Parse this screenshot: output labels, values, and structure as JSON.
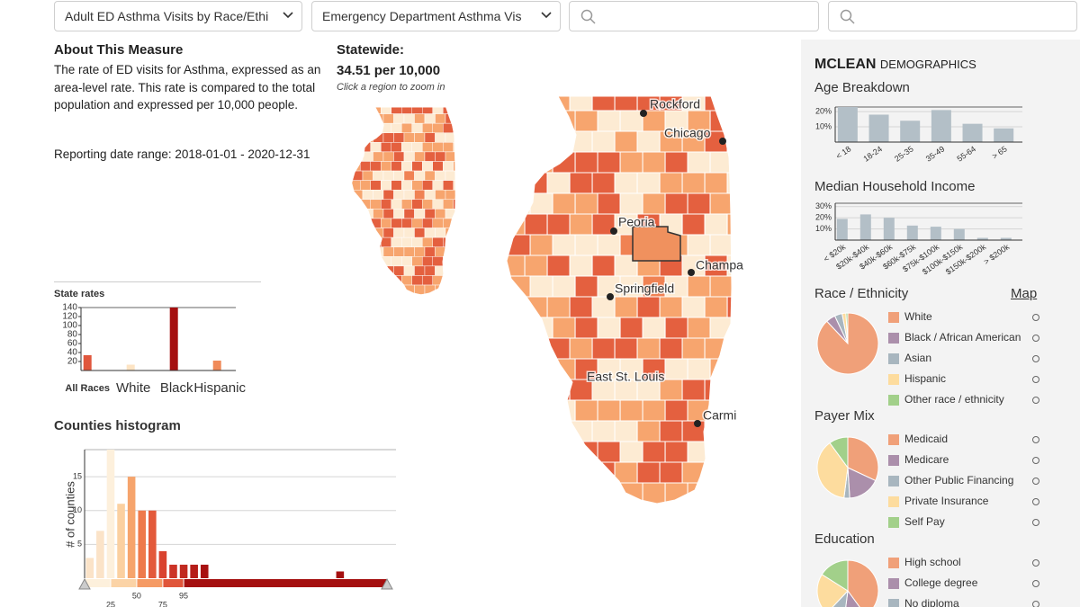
{
  "toolbar": {
    "dropdowns": [
      "Adult ED Asthma Visits by Race/Ethi",
      "Emergency Department Asthma Vis"
    ]
  },
  "about": {
    "title": "About This Measure",
    "text": "The rate of ED visits for Asthma, expressed as an area-level rate. This rate is compared to the total population and expressed per 10,000 people.",
    "reporting": "Reporting date range: 2018-01-01 - 2020-12-31"
  },
  "statewide": {
    "title": "Statewide:",
    "value": "34.51 per 10,000",
    "hint": "Click a region to zoom in"
  },
  "map": {
    "cities": [
      "Rockford",
      "Chicago",
      "Peoria",
      "Champa",
      "Springfield",
      "East St. Louis",
      "Carmi"
    ]
  },
  "demographics": {
    "county": "MCLEAN",
    "heading": "DEMOGRAPHICS",
    "map_link": "Map"
  },
  "chart_data": [
    {
      "type": "bar",
      "title": "State rates",
      "categories": [
        "All Races",
        "White",
        "Black",
        "Hispanic"
      ],
      "values": [
        34,
        13,
        140,
        22
      ],
      "colors": [
        "#e0573d",
        "#fde4c4",
        "#a50f0f",
        "#f08a58"
      ],
      "ylim": [
        0,
        140
      ],
      "yticks": [
        20,
        40,
        60,
        80,
        100,
        120,
        140
      ],
      "grid": false
    },
    {
      "type": "histogram",
      "title": "Counties histogram",
      "y_label": "# of counties",
      "bins": [
        0,
        10,
        20,
        30,
        40,
        50,
        60,
        70,
        80,
        90,
        100,
        110,
        120,
        130,
        140,
        150,
        160,
        170,
        180,
        190,
        200,
        210,
        220,
        230,
        240,
        250,
        260,
        270,
        280,
        290
      ],
      "values": [
        3,
        7,
        19,
        11,
        15,
        10,
        10,
        4,
        2,
        2,
        2,
        2,
        0,
        0,
        0,
        0,
        0,
        0,
        0,
        0,
        0,
        0,
        0,
        0,
        1,
        0,
        0,
        0,
        0
      ],
      "colors": [
        "#fbe3c8",
        "#fbe3c8",
        "#fdf0dc",
        "#fbd0a0",
        "#f6a46c",
        "#ee7a4c",
        "#e35a3b",
        "#d9432f",
        "#cc3326",
        "#c02a20",
        "#b51d19",
        "#a81212",
        "#a50f0f",
        "#a50f0f",
        "#a50f0f",
        "#a50f0f",
        "#a50f0f",
        "#a50f0f",
        "#a50f0f",
        "#a50f0f",
        "#a50f0f",
        "#a50f0f",
        "#a50f0f",
        "#a50f0f",
        "#a50f0f",
        "#a50f0f",
        "#a50f0f",
        "#a50f0f",
        "#a50f0f"
      ],
      "band_colors": [
        "#fdf0dc",
        "#fbd3a6",
        "#f59a64",
        "#e0553a",
        "#a50f0f"
      ],
      "xlim": [
        0,
        290
      ],
      "xticks": [
        25,
        50,
        75,
        95
      ],
      "ylim": [
        0,
        19
      ],
      "yticks": [
        5,
        10,
        15
      ],
      "grid": true
    },
    {
      "type": "bar",
      "title": "Age Breakdown",
      "categories": [
        "< 18",
        "18-24",
        "25-35",
        "35-49",
        "55-64",
        "> 65"
      ],
      "values": [
        23,
        18,
        14,
        21,
        12,
        9
      ],
      "color": "#b3bfc7",
      "ylim": [
        0,
        23
      ],
      "yticks": [
        {
          "value": 10,
          "label": "10%"
        },
        {
          "value": 20,
          "label": "20%"
        }
      ],
      "grid": true
    },
    {
      "type": "bar",
      "title": "Median Household Income",
      "categories": [
        "< $20k",
        "$20k-$40k",
        "$40k-$60k",
        "$60k-$75k",
        "$75k-$100k",
        "$100k-$150k",
        "$150k-$200k",
        "> $200k"
      ],
      "values": [
        19,
        23,
        20,
        13,
        12,
        10,
        2,
        2
      ],
      "color": "#b3bfc7",
      "ylim": [
        0,
        33
      ],
      "yticks": [
        {
          "value": 10,
          "label": "10%"
        },
        {
          "value": 20,
          "label": "20%"
        },
        {
          "value": 30,
          "label": "30%"
        }
      ],
      "grid": true
    },
    {
      "type": "pie",
      "title": "Race / Ethnicity",
      "categories": [
        "White",
        "Black / African American",
        "Asian",
        "Hispanic",
        "Other race / ethnicity"
      ],
      "values": [
        88,
        5,
        4,
        2,
        1
      ],
      "colors": [
        "#f0a079",
        "#ab8fab",
        "#a8b6bf",
        "#fddc9e",
        "#a2d08a"
      ]
    },
    {
      "type": "pie",
      "title": "Payer Mix",
      "categories": [
        "Medicaid",
        "Medicare",
        "Other Public Financing",
        "Private Insurance",
        "Self Pay"
      ],
      "values": [
        32,
        17,
        3,
        38,
        10
      ],
      "colors": [
        "#f0a079",
        "#ab8fab",
        "#a8b6bf",
        "#fddc9e",
        "#a2d08a"
      ]
    },
    {
      "type": "pie",
      "title": "Education",
      "categories": [
        "High school",
        "College degree",
        "No diploma",
        null,
        null
      ],
      "values": [
        40,
        12,
        10,
        22,
        16
      ],
      "colors": [
        "#f0a079",
        "#ab8fab",
        "#a8b6bf",
        "#fddc9e",
        "#a2d08a"
      ]
    }
  ]
}
